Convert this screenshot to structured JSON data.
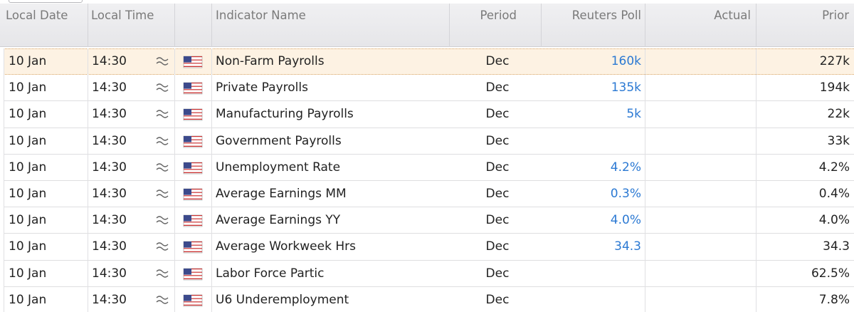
{
  "header": [
    "Local Date",
    "Local Time",
    "Indicator Name",
    "Period",
    "Reuters Poll",
    "Actual",
    "Prior"
  ],
  "rows": [
    {
      "date": "10 Jan",
      "time": "14:30",
      "name": "Non-Farm Payrolls",
      "period": "Dec",
      "poll": "160k",
      "prior": "227k"
    },
    {
      "date": "10 Jan",
      "time": "14:30",
      "name": "Private Payrolls",
      "period": "Dec",
      "poll": "135k",
      "prior": "194k"
    },
    {
      "date": "10 Jan",
      "time": "14:30",
      "name": "Manufacturing Payrolls",
      "period": "Dec",
      "poll": "5k",
      "prior": "22k"
    },
    {
      "date": "10 Jan",
      "time": "14:30",
      "name": "Government Payrolls",
      "period": "Dec",
      "prior": "33k"
    },
    {
      "date": "10 Jan",
      "time": "14:30",
      "name": "Unemployment Rate",
      "period": "Dec",
      "poll": "4.2%",
      "prior": "4.2%"
    },
    {
      "date": "10 Jan",
      "time": "14:30",
      "name": "Average Earnings MM",
      "period": "Dec",
      "poll": "0.3%",
      "prior": "0.4%"
    },
    {
      "date": "10 Jan",
      "time": "14:30",
      "name": "Average Earnings YY",
      "period": "Dec",
      "poll": "4.0%",
      "prior": "4.0%"
    },
    {
      "date": "10 Jan",
      "time": "14:30",
      "name": "Average Workweek Hrs",
      "period": "Dec",
      "poll": "34.3",
      "prior": "34.3"
    },
    {
      "date": "10 Jan",
      "time": "14:30",
      "name": "Labor Force Partic",
      "period": "Dec",
      "prior": "62.5%"
    },
    {
      "date": "10 Jan",
      "time": "14:30",
      "name": "U6 Underemployment",
      "period": "Dec",
      "prior": "7.8%"
    }
  ]
}
